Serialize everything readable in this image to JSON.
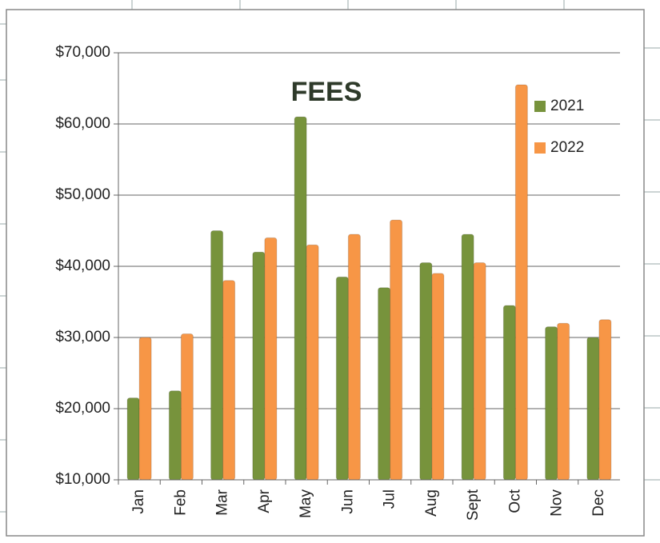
{
  "chart_data": {
    "type": "bar",
    "title": "FEES",
    "categories": [
      "Jan",
      "Feb",
      "Mar",
      "Apr",
      "May",
      "Jun",
      "Jul",
      "Aug",
      "Sept",
      "Oct",
      "Nov",
      "Dec"
    ],
    "series": [
      {
        "name": "2021",
        "color": "#77933c",
        "values": [
          21500,
          22500,
          45000,
          42000,
          61000,
          38500,
          37000,
          40500,
          44500,
          34500,
          31500,
          30000
        ]
      },
      {
        "name": "2022",
        "color": "#f79646",
        "values": [
          30000,
          30500,
          38000,
          44000,
          43000,
          44500,
          46500,
          39000,
          40500,
          65500,
          32000,
          32500
        ]
      }
    ],
    "ylim": [
      10000,
      70000
    ],
    "yticks": [
      {
        "value": 10000,
        "label": "$10,000"
      },
      {
        "value": 20000,
        "label": "$20,000"
      },
      {
        "value": 30000,
        "label": "$30,000"
      },
      {
        "value": 40000,
        "label": "$40,000"
      },
      {
        "value": 50000,
        "label": "$50,000"
      },
      {
        "value": 60000,
        "label": "$60,000"
      },
      {
        "value": 70000,
        "label": "$70,000"
      }
    ],
    "grid": true,
    "legend": "upper right"
  }
}
